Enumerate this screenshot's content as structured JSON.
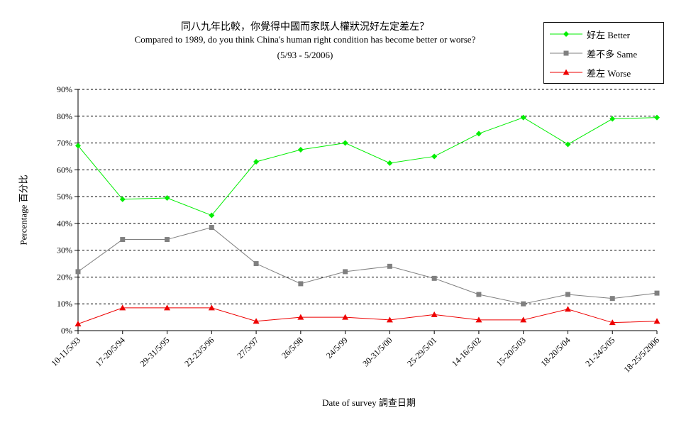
{
  "chart_data": {
    "type": "line",
    "title_zh": "同八九年比較，你覺得中國而家既人權狀況好左定差左？",
    "title": "Compared to 1989, do you think China's human right condition has become better or worse?",
    "subtitle": "(5/93 - 5/2006)",
    "xlabel": "Date of survey  調查日期",
    "ylabel": "Percentage  百分比",
    "ylim": [
      0,
      90
    ],
    "yticks": [
      "0%",
      "10%",
      "20%",
      "30%",
      "40%",
      "50%",
      "60%",
      "70%",
      "80%",
      "90%"
    ],
    "grid": true,
    "legend_position": "top-right",
    "categories": [
      "10-11/5/93",
      "17-20/5/94",
      "29-31/5/95",
      "22-23/5/96",
      "27/5/97",
      "26/5/98",
      "24/5/99",
      "30-31/5/00",
      "25-29/5/01",
      "14-16/5/02",
      "15-20/5/03",
      "18-20/5/04",
      "21-24/5/05",
      "18-25/5/2006"
    ],
    "series": [
      {
        "name": "好左 Better",
        "color": "#00ee00",
        "marker": "diamond",
        "values": [
          69,
          49,
          49.5,
          43,
          63,
          67.5,
          70,
          62.5,
          65,
          73.5,
          79.5,
          69.5,
          79,
          79.5
        ]
      },
      {
        "name": "差不多 Same",
        "color": "#808080",
        "marker": "square",
        "values": [
          22,
          34,
          34,
          38.5,
          25,
          17.5,
          22,
          24,
          19.5,
          13.5,
          10,
          13.5,
          12,
          14
        ]
      },
      {
        "name": "差左 Worse",
        "color": "#ee0000",
        "marker": "triangle",
        "values": [
          2.5,
          8.5,
          8.5,
          8.5,
          3.5,
          5,
          5,
          4,
          6,
          4,
          4,
          8,
          3,
          3.5
        ]
      }
    ]
  }
}
